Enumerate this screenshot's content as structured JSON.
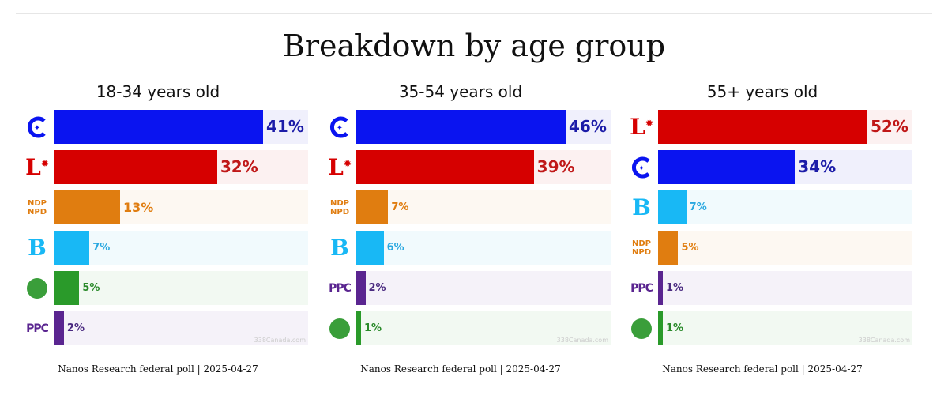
{
  "title": "Breakdown by age group",
  "watermark": "338Canada.com",
  "parties": {
    "CPC": {
      "bar": "#0a14f0",
      "text": "#1c1ca8",
      "bg": "#f0f0fc",
      "logo": "C"
    },
    "LPC": {
      "bar": "#d60000",
      "text": "#c01818",
      "bg": "#fcf1f1",
      "logo": "L"
    },
    "NDP": {
      "bar": "#e07d10",
      "text": "#e07d10",
      "bg": "#fdf8f2",
      "logo": "NDP NPD"
    },
    "BQ": {
      "bar": "#18b8f5",
      "text": "#2aa8e0",
      "bg": "#f1fafd",
      "logo": "B"
    },
    "GPC": {
      "bar": "#2a9a2a",
      "text": "#2a8a2a",
      "bg": "#f2f9f2",
      "logo": ""
    },
    "PPC": {
      "bar": "#5a2590",
      "text": "#4a2a80",
      "bg": "#f5f2f9",
      "logo": "PPC"
    }
  },
  "chart_data": [
    {
      "type": "bar",
      "title": "18-34 years old",
      "footer": "Nanos Research federal poll | 2025-04-27",
      "categories": [
        "CPC",
        "LPC",
        "NDP",
        "BQ",
        "GPC",
        "PPC"
      ],
      "values": [
        41,
        32,
        13,
        7,
        5,
        2
      ],
      "labels": [
        "41%",
        "32%",
        "13%",
        "7%",
        "5%",
        "2%"
      ]
    },
    {
      "type": "bar",
      "title": "35-54 years old",
      "footer": "Nanos Research federal poll | 2025-04-27",
      "categories": [
        "CPC",
        "LPC",
        "NDP",
        "BQ",
        "PPC",
        "GPC"
      ],
      "values": [
        46,
        39,
        7,
        6,
        2,
        1
      ],
      "labels": [
        "46%",
        "39%",
        "7%",
        "6%",
        "2%",
        "1%"
      ]
    },
    {
      "type": "bar",
      "title": "55+ years old",
      "footer": "Nanos Research federal poll | 2025-04-27",
      "categories": [
        "LPC",
        "CPC",
        "BQ",
        "NDP",
        "PPC",
        "GPC"
      ],
      "values": [
        52,
        34,
        7,
        5,
        1,
        1
      ],
      "labels": [
        "52%",
        "34%",
        "7%",
        "5%",
        "1%",
        "1%"
      ]
    }
  ]
}
